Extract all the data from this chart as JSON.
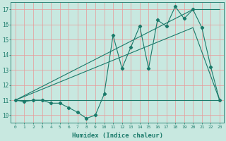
{
  "line1_x": [
    0,
    1,
    2,
    3,
    4,
    5,
    6,
    7,
    8,
    9,
    10,
    11,
    12,
    13,
    14,
    15,
    16,
    17,
    18,
    19,
    20,
    21,
    22,
    23
  ],
  "line1_y": [
    11,
    10.9,
    11,
    11,
    10.8,
    10.8,
    10.5,
    10.2,
    9.8,
    10.0,
    11.4,
    15.3,
    13.1,
    14.5,
    15.9,
    13.1,
    16.3,
    15.9,
    17.2,
    16.4,
    17.0,
    15.8,
    13.2,
    11.0
  ],
  "line2_x": [
    0,
    23
  ],
  "line2_y": [
    11,
    11
  ],
  "line3_x": [
    0,
    20,
    23
  ],
  "line3_y": [
    11,
    15.8,
    11.0
  ],
  "line4_x": [
    0,
    20,
    23
  ],
  "line4_y": [
    11,
    17.0,
    17.0
  ],
  "bg_color": "#c8e8e0",
  "line_color": "#1a7a6a",
  "grid_color": "#e89898",
  "xlabel": "Humidex (Indice chaleur)",
  "ylabel_ticks": [
    10,
    11,
    12,
    13,
    14,
    15,
    16,
    17
  ],
  "xticks": [
    0,
    1,
    2,
    3,
    4,
    5,
    6,
    7,
    8,
    9,
    10,
    11,
    12,
    13,
    14,
    15,
    16,
    17,
    18,
    19,
    20,
    21,
    22,
    23
  ],
  "xlim": [
    -0.5,
    23.5
  ],
  "ylim": [
    9.5,
    17.5
  ]
}
